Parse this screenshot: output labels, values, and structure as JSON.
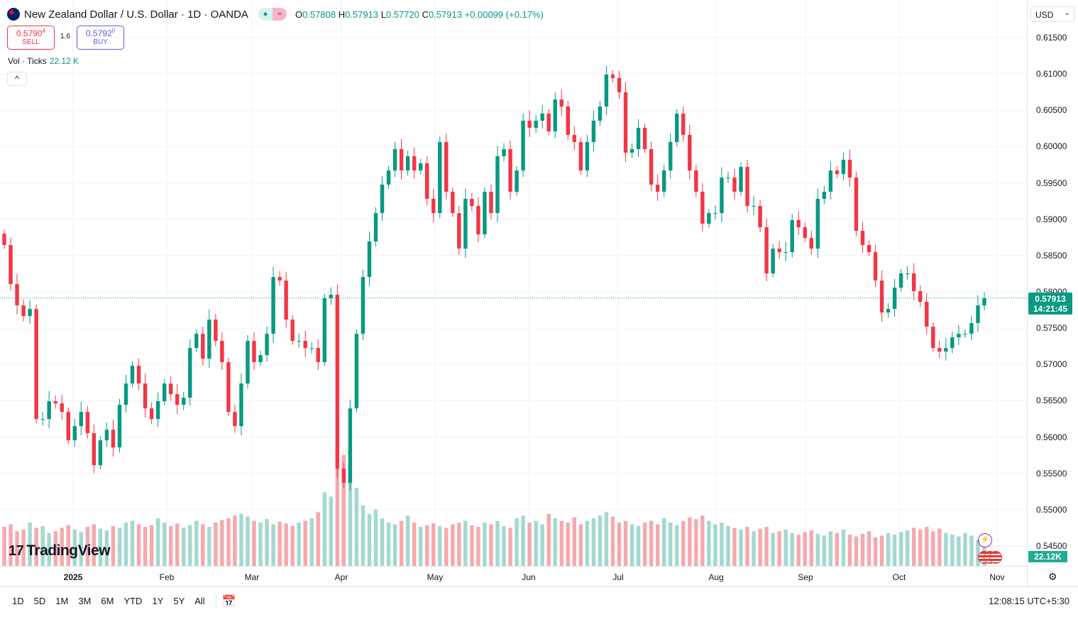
{
  "header": {
    "title": "New Zealand Dollar / U.S. Dollar · 1D · OANDA",
    "open_label": "O",
    "open": "0.57808",
    "high_label": "H",
    "high": "0.57913",
    "low_label": "L",
    "low": "0.57720",
    "close_label": "C",
    "close": "0.57913",
    "change": "+0.00099 (+0.17%)",
    "market_icon": "market-open-dot",
    "mode_icon": "≈"
  },
  "trade": {
    "sell_price": "0.5790",
    "sell_sup": "4",
    "sell_label": "SELL",
    "spread": "1.6",
    "buy_price": "0.5792",
    "buy_sup": "0",
    "buy_label": "BUY"
  },
  "volume_legend": {
    "label": "Vol · Ticks",
    "value": "22.12 K"
  },
  "currency": "USD",
  "current_price": {
    "price": "0.57913",
    "countdown": "14:21:45"
  },
  "volume_axis_label": "22.12K",
  "logo": "TradingView",
  "bottom": {
    "ranges": [
      "1D",
      "5D",
      "1M",
      "3M",
      "6M",
      "YTD",
      "1Y",
      "5Y",
      "All"
    ],
    "clock": "12:08:15 UTC+5:30"
  },
  "colors": {
    "up": "#089981",
    "down": "#f23645",
    "up_volume": "#a3d9cf",
    "down_volume": "#f5a9ae"
  },
  "chart_data": {
    "type": "candlestick",
    "symbol": "NZDUSD",
    "interval": "1D",
    "ylim": [
      0.545,
      0.615
    ],
    "y_ticks": [
      "0.61500",
      "0.61000",
      "0.60500",
      "0.60000",
      "0.59500",
      "0.59000",
      "0.58500",
      "0.58000",
      "0.57500",
      "0.57000",
      "0.56500",
      "0.56000",
      "0.55500",
      "0.55000",
      "0.54500"
    ],
    "x_ticks": [
      "2025",
      "Feb",
      "Mar",
      "Apr",
      "May",
      "Jun",
      "Jul",
      "Aug",
      "Sep",
      "Oct",
      "Nov"
    ],
    "grid": true,
    "first_open": 0.588,
    "close": [
      0.58644,
      0.58106,
      0.57813,
      0.57666,
      0.57764,
      0.56248,
      0.56248,
      0.56493,
      0.56463,
      0.56346,
      0.55955,
      0.5615,
      0.56346,
      0.56053,
      0.55612,
      0.55955,
      0.56101,
      0.55857,
      0.56444,
      0.56737,
      0.56982,
      0.56737,
      0.56395,
      0.56248,
      0.56493,
      0.56737,
      0.5659,
      0.56444,
      0.56542,
      0.57226,
      0.57422,
      0.57079,
      0.57617,
      0.57324,
      0.57031,
      0.56346,
      0.5615,
      0.56737,
      0.57324,
      0.57031,
      0.57128,
      0.57422,
      0.58204,
      0.58155,
      0.57617,
      0.57324,
      0.57324,
      0.57226,
      0.57226,
      0.57031,
      0.57911,
      0.5796,
      0.55564,
      0.55368,
      0.56395,
      0.57422,
      0.58204,
      0.58693,
      0.59084,
      0.59476,
      0.59671,
      0.59965,
      0.59671,
      0.59867,
      0.59671,
      0.59769,
      0.5928,
      0.59084,
      0.60062,
      0.59378,
      0.59084,
      0.58595,
      0.5928,
      0.59182,
      0.58791,
      0.59378,
      0.59084,
      0.59867,
      0.59965,
      0.59378,
      0.59671,
      0.60356,
      0.60258,
      0.60356,
      0.60454,
      0.60209,
      0.60649,
      0.60551,
      0.6016,
      0.60062,
      0.59671,
      0.60062,
      0.60356,
      0.60551,
      0.60991,
      0.60943,
      0.60747,
      0.59916,
      0.59965,
      0.60258,
      0.59965,
      0.59476,
      0.59378,
      0.59671,
      0.60062,
      0.60454,
      0.6016,
      0.59671,
      0.59378,
      0.58938,
      0.59084,
      0.59084,
      0.59573,
      0.59573,
      0.59378,
      0.5972,
      0.59182,
      0.59182,
      0.58889,
      0.58253,
      0.58595,
      0.58546,
      0.58546,
      0.58987,
      0.58889,
      0.58742,
      0.58595,
      0.5928,
      0.59378,
      0.59671,
      0.59622,
      0.59818,
      0.59573,
      0.5884,
      0.58644,
      0.58546,
      0.58155,
      0.57715,
      0.57764,
      0.58057,
      0.58253,
      0.58253,
      0.58009,
      0.57862,
      0.5752,
      0.57226,
      0.57177,
      0.57226,
      0.57373,
      0.57422,
      0.57422,
      0.57569,
      0.57813,
      0.57913
    ],
    "volume_k": [
      45,
      48,
      40,
      42,
      50,
      44,
      46,
      38,
      40,
      44,
      47,
      42,
      39,
      45,
      48,
      43,
      41,
      46,
      44,
      50,
      52,
      48,
      45,
      47,
      55,
      50,
      46,
      49,
      44,
      47,
      52,
      48,
      45,
      50,
      53,
      55,
      58,
      60,
      57,
      52,
      50,
      54,
      48,
      51,
      49,
      46,
      50,
      52,
      55,
      62,
      85,
      80,
      135,
      128,
      110,
      90,
      70,
      60,
      65,
      55,
      50,
      48,
      52,
      58,
      50,
      45,
      47,
      49,
      46,
      44,
      48,
      50,
      52,
      47,
      45,
      50,
      48,
      52,
      46,
      44,
      55,
      58,
      50,
      52,
      48,
      60,
      55,
      52,
      50,
      56,
      48,
      52,
      55,
      58,
      62,
      57,
      50,
      52,
      48,
      46,
      50,
      52,
      48,
      55,
      50,
      47,
      52,
      56,
      54,
      58,
      52,
      48,
      50,
      46,
      44,
      42,
      45,
      40,
      43,
      45,
      38,
      40,
      42,
      38,
      36,
      39,
      41,
      37,
      35,
      40,
      38,
      42,
      36,
      34,
      37,
      40,
      33,
      35,
      38,
      36,
      39,
      41,
      44,
      42,
      45,
      40,
      43,
      38,
      36,
      34,
      38,
      35,
      30,
      22.12
    ],
    "last_price": 0.57913
  }
}
